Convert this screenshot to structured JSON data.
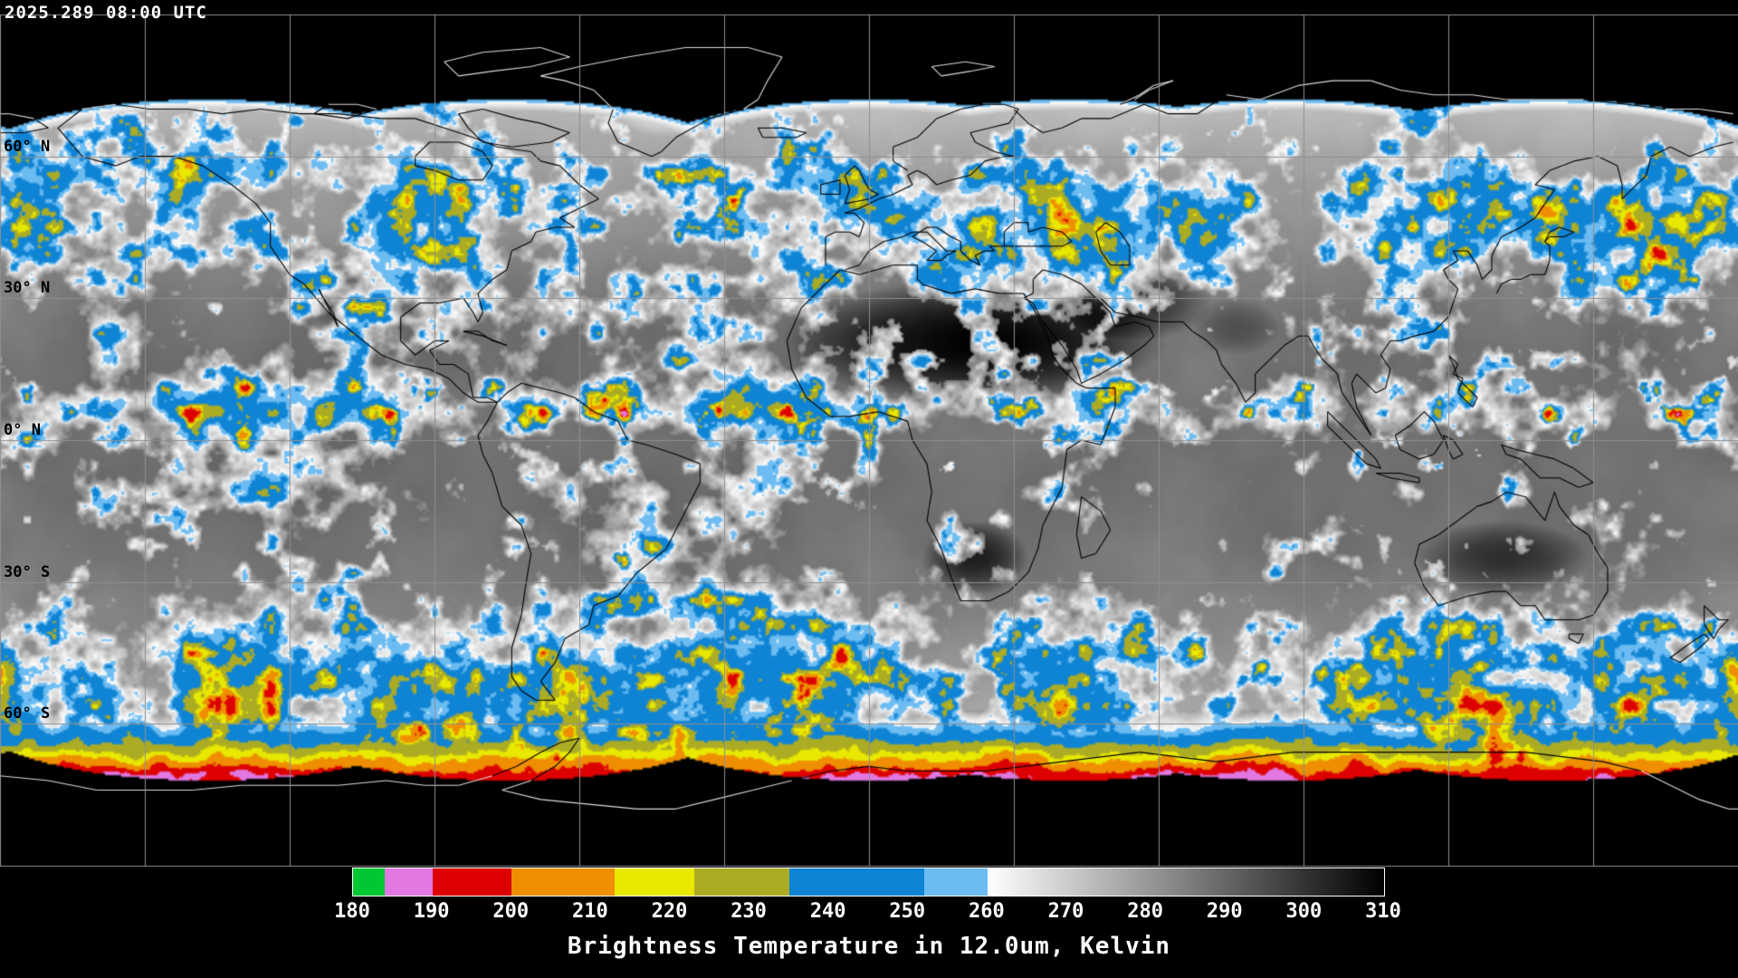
{
  "header": {
    "timestamp": "2025.289 08:00 UTC"
  },
  "map": {
    "projection": "equirectangular",
    "lat_labels": [
      {
        "text": "60° N",
        "lat": 60
      },
      {
        "text": "30° N",
        "lat": 30
      },
      {
        "text": "0° N",
        "lat": 0
      },
      {
        "text": "30° S",
        "lat": -30
      },
      {
        "text": "60° S",
        "lat": -60
      }
    ],
    "grid": {
      "lon_step_deg": 30,
      "lat_step_deg": 30,
      "line_color": "#8f8f8f"
    },
    "colors": {
      "background": "#000000",
      "coastline_on_data": "#000000",
      "coastline_on_void": "#dddddd",
      "label_text": "#000000",
      "overlay_text": "#ffffff"
    },
    "coastlines": [
      [
        -168,
        66,
        -163,
        60,
        -156,
        58,
        -151,
        60,
        -144,
        60,
        -138,
        58,
        -132,
        54,
        -127,
        50,
        -124,
        46,
        -124,
        41,
        -120,
        35,
        -117,
        33,
        -112,
        27,
        -106,
        22,
        -101,
        18,
        -96,
        16,
        -91,
        15,
        -87,
        13,
        -84,
        10,
        -81,
        8,
        -77,
        8,
        -79,
        9,
        -82,
        9,
        -83,
        14,
        -86,
        16,
        -89,
        16,
        -91,
        19,
        -87,
        21,
        -90,
        21,
        -94,
        18,
        -97,
        21,
        -97,
        26,
        -93,
        29,
        -89,
        29,
        -84,
        30,
        -82,
        27,
        -81,
        25,
        -80,
        27,
        -81,
        31,
        -78,
        34,
        -75,
        36,
        -74,
        40,
        -70,
        42,
        -69,
        44,
        -65,
        45,
        -61,
        45,
        -64,
        47,
        -60,
        49,
        -56,
        51,
        -60,
        54,
        -64,
        58,
        -68,
        59,
        -70,
        61,
        -77,
        62,
        -82,
        64,
        -88,
        66,
        -94,
        68,
        -101,
        68,
        -110,
        69,
        -118,
        69,
        -126,
        70,
        -134,
        69,
        -141,
        70,
        -149,
        70,
        -156,
        71,
        -163,
        70,
        -168,
        66
      ],
      [
        -94,
        58,
        -90,
        57,
        -85,
        55,
        -80,
        55,
        -78,
        58,
        -80,
        61,
        -85,
        63,
        -91,
        63,
        -94,
        60,
        -94,
        58
      ],
      [
        -45,
        60,
        -52,
        63,
        -54,
        67,
        -53,
        70,
        -57,
        74,
        -63,
        76,
        -68,
        77,
        -60,
        79,
        -50,
        81,
        -38,
        83,
        -25,
        83,
        -18,
        81,
        -21,
        76,
        -23,
        72,
        -26,
        70,
        -33,
        68,
        -40,
        64,
        -43,
        61,
        -45,
        60
      ],
      [
        -77,
        8,
        -79,
        4,
        -81,
        1,
        -80,
        -3,
        -78,
        -7,
        -76,
        -14,
        -72,
        -18,
        -70,
        -24,
        -71,
        -30,
        -72,
        -37,
        -74,
        -44,
        -74,
        -50,
        -72,
        -53,
        -69,
        -55,
        -65,
        -55,
        -68,
        -51,
        -65,
        -47,
        -63,
        -42,
        -58,
        -39,
        -57,
        -35,
        -52,
        -33,
        -48,
        -28,
        -42,
        -23,
        -39,
        -17,
        -35,
        -9,
        -35,
        -5,
        -40,
        -3,
        -46,
        -1,
        -50,
        0,
        -52,
        4,
        -57,
        6,
        -61,
        9,
        -64,
        10,
        -68,
        11,
        -72,
        12,
        -75,
        10,
        -77,
        8
      ],
      [
        -84,
        23,
        -80,
        22,
        -75,
        20,
        -78,
        21,
        -81,
        23,
        -84,
        23
      ],
      [
        -114,
        32,
        -112,
        28,
        -110,
        24,
        -111,
        27,
        -113,
        30,
        -114,
        32
      ],
      [
        -6,
        36,
        -9,
        33,
        -14,
        28,
        -17,
        21,
        -16,
        15,
        -13,
        9,
        -8,
        5,
        -4,
        5,
        2,
        6,
        8,
        4,
        9,
        0,
        12,
        -5,
        13,
        -11,
        12,
        -17,
        15,
        -23,
        17,
        -29,
        19,
        -34,
        25,
        -34,
        29,
        -32,
        33,
        -28,
        35,
        -23,
        36,
        -18,
        38,
        -14,
        40,
        -10,
        41,
        -2,
        44,
        0,
        48,
        -1,
        51,
        7,
        51,
        11,
        45,
        11,
        43,
        12,
        40,
        15,
        38,
        18,
        37,
        22,
        34,
        28,
        32,
        31,
        27,
        31,
        22,
        32,
        17,
        31,
        11,
        33,
        10,
        34,
        10,
        37,
        5,
        37,
        -2,
        35,
        -6,
        36
      ],
      [
        44,
        -12,
        48,
        -15,
        50,
        -19,
        47,
        -24,
        44,
        -25,
        43,
        -20,
        44,
        -12
      ],
      [
        34,
        29,
        36,
        25,
        40,
        20,
        43,
        15,
        44,
        12,
        48,
        14,
        53,
        17,
        57,
        20,
        59,
        22,
        58,
        24,
        55,
        25,
        51,
        24,
        50,
        27,
        48,
        29,
        46,
        31,
        44,
        33,
        40,
        35,
        36,
        36,
        34,
        34,
        34,
        31,
        32,
        30,
        34,
        29
      ],
      [
        -9,
        37,
        -9,
        39,
        -9,
        43,
        -7,
        44,
        -4,
        44,
        -2,
        43,
        -1,
        46,
        -3,
        48,
        -5,
        48,
        -2,
        49,
        0,
        50,
        2,
        51,
        5,
        52,
        7,
        53,
        9,
        54,
        8,
        56,
        10,
        57,
        12,
        56,
        14,
        54,
        17,
        55,
        21,
        56,
        24,
        59,
        28,
        60,
        30,
        60,
        26,
        61,
        22,
        63,
        21,
        65,
        25,
        66,
        29,
        67,
        31,
        70,
        28,
        71,
        24,
        71,
        19,
        70,
        14,
        68,
        10,
        64,
        5,
        62,
        5,
        59,
        8,
        57
      ],
      [
        -5,
        36,
        -2,
        37,
        0,
        40,
        3,
        42,
        7,
        43,
        9,
        44,
        12,
        44,
        14,
        42,
        16,
        40,
        18,
        40,
        16,
        39,
        15,
        38,
        12,
        38,
        14,
        40,
        11,
        42,
        9,
        43,
        12,
        45,
        14,
        45,
        17,
        43,
        19,
        42,
        19,
        40,
        21,
        38,
        23,
        37,
        22,
        39,
        24,
        40,
        26,
        40,
        25,
        41,
        28,
        41,
        31,
        41,
        36,
        41,
        40,
        41,
        42,
        42,
        40,
        44,
        36,
        45,
        33,
        44,
        33,
        46,
        30,
        46,
        28,
        44,
        28,
        41
      ],
      [
        50,
        37,
        54,
        37,
        54,
        41,
        52,
        44,
        49,
        46,
        47,
        44,
        48,
        40,
        50,
        37
      ],
      [
        -5,
        50,
        -4,
        53,
        -5,
        56,
        -3,
        58,
        -2,
        57,
        0,
        53,
        2,
        52,
        0,
        51,
        -5,
        50
      ],
      [
        -10,
        52,
        -6,
        52,
        -6,
        55,
        -10,
        54,
        -10,
        52
      ],
      [
        -22,
        64,
        -15,
        64,
        -13,
        65,
        -18,
        66,
        -23,
        66,
        -22,
        64
      ],
      [
        48,
        30,
        51,
        27,
        56,
        26,
        60,
        25,
        65,
        25,
        67,
        23,
        70,
        21,
        72,
        19,
        73,
        16,
        76,
        12,
        78,
        8,
        80,
        10,
        80,
        14,
        83,
        17,
        86,
        20,
        89,
        22,
        91,
        22,
        92,
        20,
        94,
        17,
        97,
        14,
        98,
        10,
        100,
        7,
        102,
        4,
        104,
        1,
        103,
        3,
        101,
        7,
        100,
        12,
        101,
        14,
        103,
        12,
        105,
        10,
        107,
        11,
        108,
        15,
        106,
        18,
        108,
        21,
        110,
        21,
        113,
        22,
        117,
        23,
        120,
        26,
        121,
        29,
        122,
        32,
        120,
        34,
        119,
        36,
        122,
        38,
        121,
        40,
        124,
        40,
        126,
        37,
        127,
        34,
        129,
        36,
        129,
        39,
        131,
        43,
        135,
        45,
        138,
        47,
        140,
        50,
        142,
        53,
        138,
        54,
        141,
        57,
        146,
        59,
        151,
        60,
        155,
        58,
        156,
        54,
        156,
        51,
        158,
        53,
        161,
        56,
        162,
        60,
        166,
        62,
        170,
        60,
        175,
        62,
        179,
        63
      ],
      [
        179,
        69,
        172,
        70,
        165,
        70,
        157,
        71,
        148,
        72,
        140,
        72,
        132,
        72,
        125,
        73,
        117,
        73,
        110,
        74,
        104,
        76,
        96,
        76,
        89,
        75,
        81,
        72,
        74,
        73,
        68,
        69,
        62,
        69,
        57,
        71,
        50,
        68,
        44,
        68,
        40,
        66,
        36,
        65,
        33,
        67,
        30,
        70
      ],
      [
        52,
        71,
        56,
        73,
        59,
        75,
        63,
        76,
        58,
        74,
        55,
        72,
        52,
        71
      ],
      [
        15,
        77,
        21,
        78,
        26,
        79,
        20,
        80,
        13,
        79,
        15,
        77
      ],
      [
        -180,
        65,
        -175,
        65,
        -170,
        66,
        -173,
        68,
        -178,
        69,
        -180,
        69
      ],
      [
        130,
        31,
        131,
        33,
        133,
        34,
        135,
        34,
        137,
        35,
        140,
        35,
        141,
        38,
        141,
        41,
        140,
        42,
        141,
        43,
        144,
        43,
        146,
        44,
        143,
        45,
        141,
        44,
        140,
        42
      ],
      [
        120,
        18,
        122,
        16,
        121,
        14,
        123,
        13,
        122,
        10,
        125,
        7,
        126,
        9,
        124,
        11,
        122,
        13,
        121,
        16,
        120,
        18
      ],
      [
        109,
        1,
        110,
        -2,
        114,
        -4,
        117,
        -3,
        119,
        0,
        117,
        4,
        115,
        6,
        112,
        3,
        109,
        1
      ],
      [
        95,
        6,
        98,
        3,
        102,
        -1,
        105,
        -4,
        106,
        -6,
        103,
        -5,
        99,
        -1,
        95,
        3,
        95,
        6
      ],
      [
        105,
        -7,
        110,
        -7,
        114,
        -8,
        114,
        -9,
        108,
        -8,
        105,
        -7
      ],
      [
        119,
        1,
        120,
        -2,
        121,
        -4,
        123,
        -3,
        121,
        0,
        119,
        1
      ],
      [
        131,
        -1,
        134,
        -2,
        138,
        -3,
        142,
        -4,
        146,
        -6,
        150,
        -9,
        147,
        -10,
        143,
        -8,
        139,
        -8,
        135,
        -4,
        132,
        -3,
        131,
        -1
      ],
      [
        114,
        -22,
        113,
        -26,
        115,
        -31,
        118,
        -35,
        124,
        -33,
        129,
        -32,
        132,
        -32,
        135,
        -35,
        138,
        -35,
        140,
        -38,
        145,
        -38,
        147,
        -38,
        150,
        -37,
        153,
        -32,
        153,
        -27,
        151,
        -24,
        149,
        -20,
        146,
        -18,
        143,
        -14,
        142,
        -11,
        140,
        -17,
        136,
        -12,
        132,
        -11,
        129,
        -13,
        126,
        -14,
        122,
        -17,
        118,
        -20,
        114,
        -22
      ],
      [
        145,
        -41,
        148,
        -41,
        147,
        -43,
        145,
        -42,
        145,
        -41
      ],
      [
        173,
        -35,
        176,
        -38,
        178,
        -38,
        176,
        -40,
        175,
        -42,
        173,
        -39,
        173,
        -35
      ],
      [
        173,
        -41,
        174,
        -42,
        172,
        -44,
        168,
        -47,
        166,
        -46,
        170,
        -43,
        173,
        -41
      ],
      [
        -80,
        63,
        -74,
        62,
        -66,
        63,
        -62,
        65,
        -68,
        67,
        -73,
        68,
        -80,
        70,
        -85,
        69,
        -83,
        66,
        -80,
        63
      ],
      [
        -115,
        69,
        -108,
        68,
        -102,
        70,
        -106,
        71,
        -112,
        71,
        -115,
        69
      ],
      [
        -85,
        77,
        -78,
        78,
        -70,
        79,
        -62,
        81,
        -68,
        83,
        -80,
        82,
        -88,
        80,
        -85,
        77
      ],
      [
        -180,
        -71,
        -170,
        -72,
        -160,
        -74,
        -150,
        -74,
        -140,
        -74,
        -130,
        -73,
        -120,
        -73,
        -110,
        -73,
        -100,
        -72,
        -92,
        -73,
        -85,
        -73,
        -78,
        -71,
        -73,
        -69,
        -68,
        -66,
        -64,
        -64,
        -60,
        -63,
        -62,
        -66,
        -65,
        -69,
        -70,
        -72,
        -76,
        -74,
        -68,
        -76,
        -58,
        -77,
        -48,
        -78,
        -40,
        -78,
        -32,
        -76,
        -24,
        -74,
        -16,
        -72,
        -8,
        -70,
        0,
        -69,
        8,
        -70,
        16,
        -70,
        24,
        -70,
        32,
        -69,
        40,
        -68,
        48,
        -67,
        56,
        -66,
        64,
        -67,
        72,
        -68,
        80,
        -67,
        88,
        -66,
        96,
        -66,
        104,
        -66,
        112,
        -66,
        120,
        -66,
        128,
        -66,
        136,
        -66,
        144,
        -67,
        152,
        -68,
        160,
        -70,
        166,
        -73,
        172,
        -76,
        178,
        -78,
        180,
        -78
      ]
    ]
  },
  "colorbar": {
    "title": "Brightness Temperature in 12.0um, Kelvin",
    "min": 180,
    "max": 310,
    "ticks": [
      180,
      190,
      200,
      210,
      220,
      230,
      240,
      250,
      260,
      270,
      280,
      290,
      300,
      310
    ],
    "segments": [
      {
        "from": 180,
        "to": 184,
        "color": "#00c832"
      },
      {
        "from": 184,
        "to": 190,
        "color": "#e278e2"
      },
      {
        "from": 190,
        "to": 200,
        "color": "#dc0000"
      },
      {
        "from": 200,
        "to": 213,
        "color": "#ee8e00"
      },
      {
        "from": 213,
        "to": 223,
        "color": "#e8e800"
      },
      {
        "from": 223,
        "to": 235,
        "color": "#acac24"
      },
      {
        "from": 235,
        "to": 252,
        "color": "#1084d4"
      },
      {
        "from": 252,
        "to": 260,
        "color": "#6cbcf2"
      },
      {
        "from": 260,
        "to": 310,
        "gradient": [
          "#ffffff",
          "#000000"
        ]
      }
    ]
  }
}
